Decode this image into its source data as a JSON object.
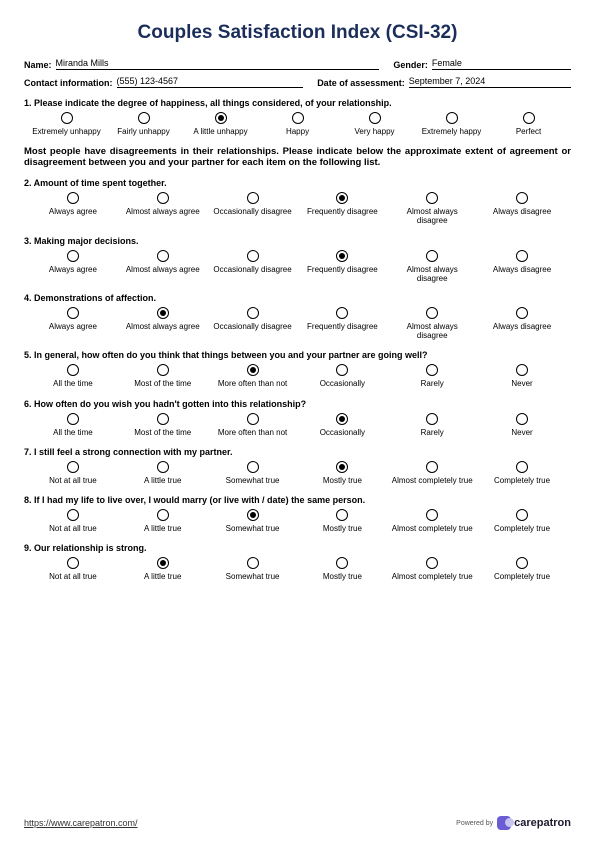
{
  "title": "Couples Satisfaction Index (CSI-32)",
  "meta": {
    "name_label": "Name:",
    "name_value": "Miranda Mills",
    "gender_label": "Gender:",
    "gender_value": "Female",
    "contact_label": "Contact information:",
    "contact_value": "(555) 123-4567",
    "date_label": "Date of assessment:",
    "date_value": "September 7, 2024"
  },
  "instruction": "Most people have disagreements in their relationships.  Please indicate below the approximate extent of agreement or disagreement between you and your partner for each item on the following list.",
  "scales": {
    "happy7": [
      "Extremely unhappy",
      "Fairly unhappy",
      "A little unhappy",
      "Happy",
      "Very happy",
      "Extremely happy",
      "Perfect"
    ],
    "agree6": [
      "Always agree",
      "Almost always agree",
      "Occasionally disagree",
      "Frequently disagree",
      "Almost always disagree",
      "Always disagree"
    ],
    "freq6": [
      "All the time",
      "Most of the time",
      "More often than not",
      "Occasionally",
      "Rarely",
      "Never"
    ],
    "true6": [
      "Not at all true",
      "A little true",
      "Somewhat true",
      "Mostly true",
      "Almost completely true",
      "Completely true"
    ]
  },
  "questions": [
    {
      "n": "1",
      "text": "Please indicate the degree of happiness, all things considered, of your relationship.",
      "scale": "happy7",
      "sel": 2
    },
    {
      "n": "2",
      "text": "Amount of time spent together.",
      "scale": "agree6",
      "sel": 3
    },
    {
      "n": "3",
      "text": "Making major decisions.",
      "scale": "agree6",
      "sel": 3
    },
    {
      "n": "4",
      "text": "Demonstrations of affection.",
      "scale": "agree6",
      "sel": 1
    },
    {
      "n": "5",
      "text": "In general, how often do you think that things between you and your partner are going well?",
      "scale": "freq6",
      "sel": 2
    },
    {
      "n": "6",
      "text": "How often do you wish you hadn't gotten into this relationship?",
      "scale": "freq6",
      "sel": 3
    },
    {
      "n": "7",
      "text": "I still feel a strong connection with my partner.",
      "scale": "true6",
      "sel": 3
    },
    {
      "n": "8",
      "text": "If I had my life to live over, I would marry (or live with / date) the same person.",
      "scale": "true6",
      "sel": 2
    },
    {
      "n": "9",
      "text": "Our relationship is strong.",
      "scale": "true6",
      "sel": 1
    }
  ],
  "footer": {
    "url": "https://www.carepatron.com/",
    "powered": "Powered by",
    "brand": "carepatron"
  }
}
